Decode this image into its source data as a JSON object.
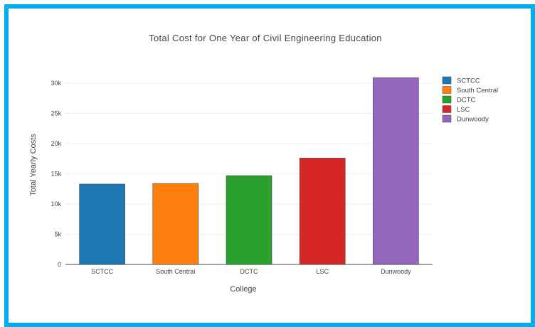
{
  "frame_color": "#00aeef",
  "chart_data": {
    "type": "bar",
    "title": "Total Cost for One Year of Civil Engineering Education",
    "xlabel": "College",
    "ylabel": "Total Yearly Costs",
    "categories": [
      "SCTCC",
      "South Central",
      "DCTC",
      "LSC",
      "Dunwoody"
    ],
    "values": [
      13300,
      13400,
      14700,
      17600,
      30900
    ],
    "colors": [
      "#1f77b4",
      "#ff7f0e",
      "#2ca02c",
      "#d62728",
      "#9467bd"
    ],
    "ylim": [
      0,
      32000
    ],
    "yticks": [
      0,
      5000,
      10000,
      15000,
      20000,
      25000,
      30000
    ],
    "ytick_labels": [
      "0",
      "5k",
      "10k",
      "15k",
      "20k",
      "25k",
      "30k"
    ],
    "grid": true,
    "legend_position": "top-right",
    "legend": [
      "SCTCC",
      "South Central",
      "DCTC",
      "LSC",
      "Dunwoody"
    ]
  }
}
